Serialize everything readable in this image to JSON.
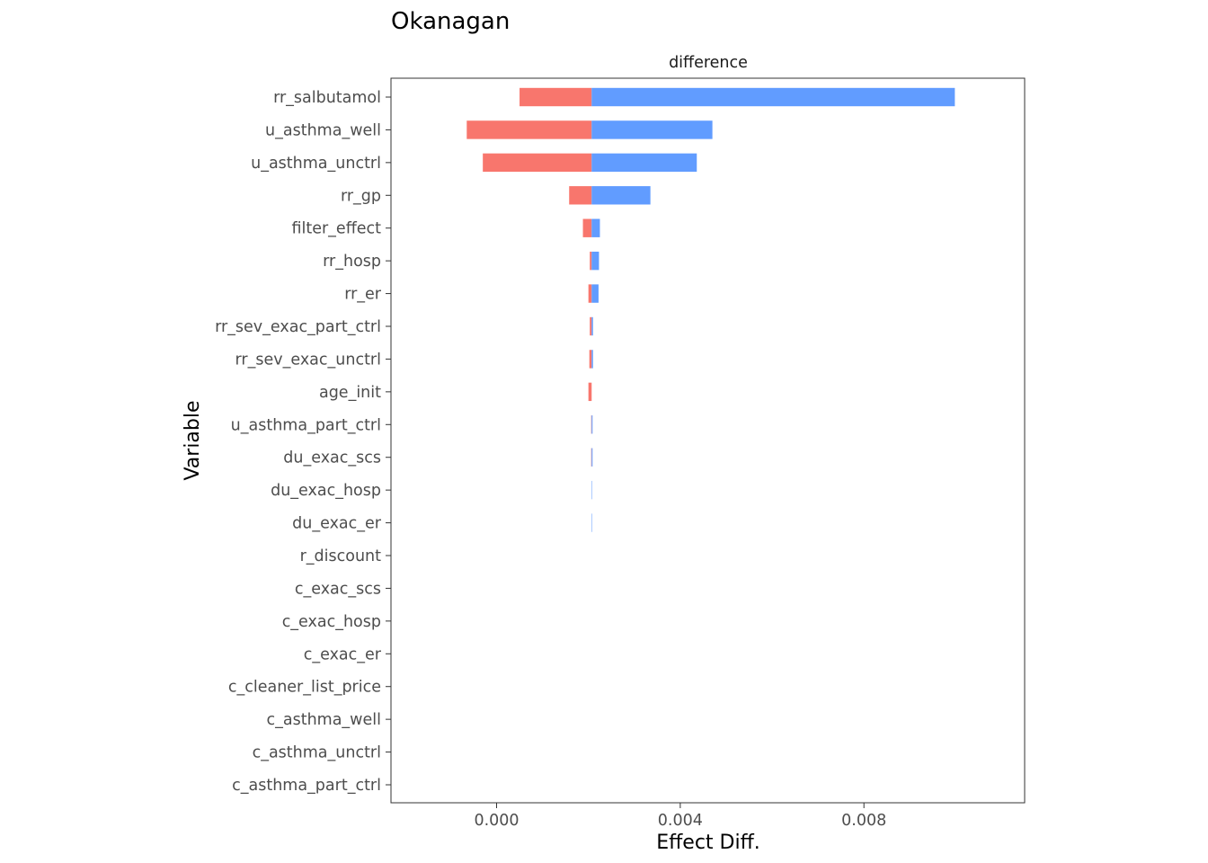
{
  "chart_data": {
    "type": "bar",
    "title": "Okanagan",
    "panel_label": "difference",
    "xlabel": "Effect Diff.",
    "ylabel": "Variable",
    "xlim": [
      -0.0023,
      0.0115
    ],
    "baseline": 0.00207,
    "x_ticks": [
      0.0,
      0.004,
      0.008
    ],
    "x_tick_labels": [
      "0.000",
      "0.004",
      "0.008"
    ],
    "grid": false,
    "legend": "none",
    "categories": [
      "rr_salbutamol",
      "u_asthma_well",
      "u_asthma_unctrl",
      "rr_gp",
      "filter_effect",
      "rr_hosp",
      "rr_er",
      "rr_sev_exac_part_ctrl",
      "rr_sev_exac_unctrl",
      "age_init",
      "u_asthma_part_ctrl",
      "du_exac_scs",
      "du_exac_hosp",
      "du_exac_er",
      "r_discount",
      "c_exac_scs",
      "c_exac_hosp",
      "c_exac_er",
      "c_cleaner_list_price",
      "c_asthma_well",
      "c_asthma_unctrl",
      "c_asthma_part_ctrl"
    ],
    "series": [
      {
        "color": "#F8766D",
        "values": [
          0.0005,
          -0.00065,
          -0.0003,
          0.00158,
          0.00188,
          0.00203,
          0.002,
          0.00203,
          0.00202,
          0.002,
          0.00206,
          0.00206,
          0.00207,
          0.00207,
          0.00207,
          0.00207,
          0.00207,
          0.00207,
          0.00207,
          0.00207,
          0.00207,
          0.00207
        ]
      },
      {
        "color": "#619CFF",
        "values": [
          0.00998,
          0.0047,
          0.00436,
          0.00335,
          0.00225,
          0.00223,
          0.00222,
          0.0021,
          0.0021,
          0.00207,
          0.00209,
          0.00209,
          0.00208,
          0.00208,
          0.00207,
          0.00207,
          0.00207,
          0.00207,
          0.00207,
          0.00207,
          0.00207,
          0.00207
        ]
      }
    ]
  }
}
